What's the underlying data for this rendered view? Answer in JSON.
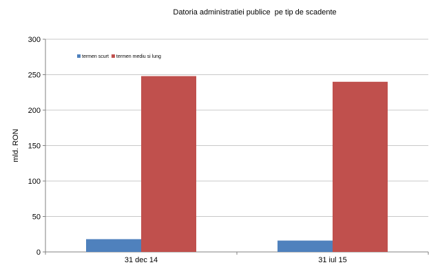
{
  "chart_data": {
    "type": "bar",
    "title": "Datoria administratiei publice  pe tip de scadente",
    "xlabel": "",
    "ylabel": "mld. RON",
    "categories": [
      "31 dec 14",
      "31 iul 15"
    ],
    "series": [
      {
        "name": "termen scurt",
        "values": [
          18,
          16
        ],
        "color": "#4f81bd"
      },
      {
        "name": "termen mediu si lung",
        "values": [
          248,
          240
        ],
        "color": "#c0504d"
      }
    ],
    "ylim": [
      0,
      300
    ],
    "yticks": [
      0,
      50,
      100,
      150,
      200,
      250,
      300
    ],
    "grid": true,
    "legend": "top-left"
  }
}
